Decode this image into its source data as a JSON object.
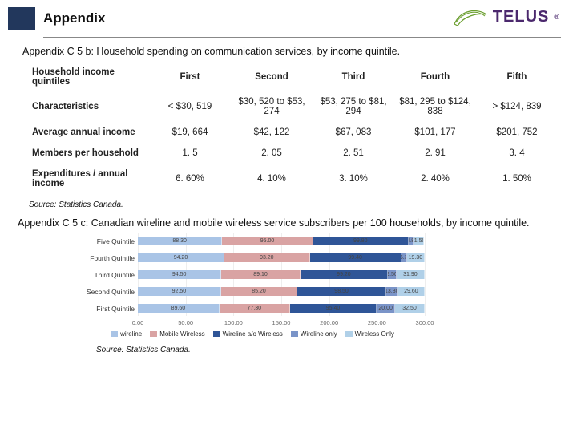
{
  "header": {
    "title": "Appendix",
    "logo_text": "TELUS",
    "logo_stroke": "#6a9e2e",
    "logo_text_color": "#4b286d"
  },
  "table_section": {
    "subtitle": "Appendix C 5 b: Household spending on communication services, by income quintile.",
    "columns_header": "Household income quintiles",
    "columns": [
      "First",
      "Second",
      "Third",
      "Fourth",
      "Fifth"
    ],
    "rows": [
      {
        "label": "Characteristics",
        "values": [
          "< $30, 519",
          "$30, 520 to $53, 274",
          "$53, 275 to $81, 294",
          "$81, 295 to $124, 838",
          "> $124, 839"
        ]
      },
      {
        "label": "Average annual income",
        "values": [
          "$19, 664",
          "$42, 122",
          "$67, 083",
          "$101, 177",
          "$201, 752"
        ]
      },
      {
        "label": "Members per household",
        "values": [
          "1. 5",
          "2. 05",
          "2. 51",
          "2. 91",
          "3. 4"
        ]
      },
      {
        "label": "Expenditures / annual income",
        "values": [
          "6. 60%",
          "4. 10%",
          "3. 10%",
          "2. 40%",
          "1. 50%"
        ]
      }
    ],
    "source": "Source: Statistics Canada."
  },
  "chart_section": {
    "subtitle": "Appendix C 5 c: Canadian wireline and mobile wireless service subscribers per 100 households, by income quintile.",
    "type": "stacked-bar-horizontal",
    "x_max": 300,
    "x_ticks": [
      0,
      50,
      100,
      150,
      200,
      250,
      300
    ],
    "row_labels": [
      "Five Quintile",
      "Fourth Quintile",
      "Third Quintile",
      "Second Quintile",
      "First Quintile"
    ],
    "series": [
      "wireline",
      "Mobile Wireless",
      "Wireline a/o Wireless",
      "Wireline only",
      "Wireless Only"
    ],
    "colors": [
      "#a9c4e6",
      "#d9a3a3",
      "#2f5597",
      "#7a94c8",
      "#b0d0e8"
    ],
    "values": [
      [
        88.3,
        95.0,
        99.8,
        4.8,
        11.5
      ],
      [
        94.2,
        93.2,
        99.4,
        6.3,
        19.3
      ],
      [
        94.5,
        89.1,
        99.2,
        9.5,
        31.9
      ],
      [
        92.5,
        85.2,
        98.5,
        13.3,
        29.6
      ],
      [
        89.6,
        77.3,
        95.4,
        20.0,
        32.5
      ]
    ],
    "source": "Source: Statistics Canada."
  }
}
